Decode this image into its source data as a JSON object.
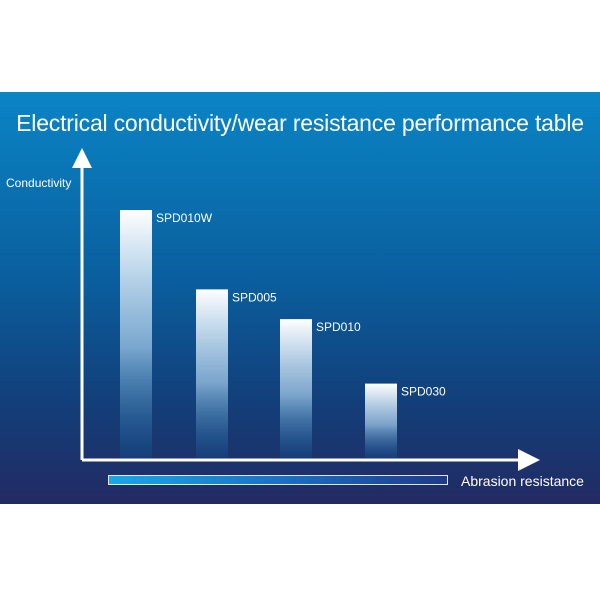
{
  "chart_data": {
    "type": "bar",
    "title": "Electrical conductivity/wear resistance performance table",
    "xlabel": "Abrasion resistance",
    "ylabel": "Conductivity",
    "categories": [
      "SPD010W",
      "SPD005",
      "SPD010",
      "SPD030"
    ],
    "values": [
      100,
      68,
      56,
      30
    ],
    "ylim": [
      0,
      100
    ],
    "grid": false,
    "legend": "none",
    "bar_labels_placement": "top-right of each bar",
    "colors": {
      "panel_top": "#0a85c6",
      "panel_bottom": "#232a63",
      "bar_top": "#ffffff",
      "bar_bottom": "#0b5d9c",
      "axis": "#ffffff"
    }
  }
}
